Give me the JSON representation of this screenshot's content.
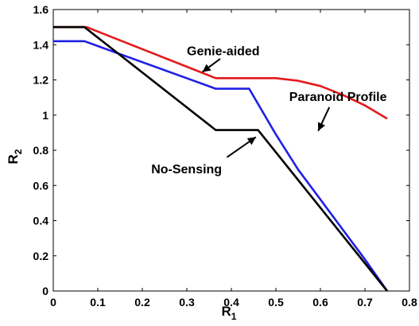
{
  "chart_data": {
    "type": "line",
    "xlabel": "R",
    "xlabel_sub": "1",
    "ylabel": "R",
    "ylabel_sub": "2",
    "xlim": [
      0,
      0.8
    ],
    "ylim": [
      0,
      1.6
    ],
    "xticks": [
      "0",
      "0.1",
      "0.2",
      "0.3",
      "0.4",
      "0.5",
      "0.6",
      "0.7",
      "0.8"
    ],
    "yticks": [
      "0",
      "0.2",
      "0.4",
      "0.6",
      "0.8",
      "1",
      "1.2",
      "1.4",
      "1.6"
    ],
    "grid": false,
    "series": [
      {
        "key": "genie",
        "color": "#e41a1c",
        "x": [
          0,
          0.075,
          0.365,
          0.5,
          0.55,
          0.6,
          0.65,
          0.7,
          0.75
        ],
        "y": [
          1.5,
          1.5,
          1.21,
          1.21,
          1.195,
          1.165,
          1.115,
          1.055,
          0.98
        ]
      },
      {
        "key": "paranoid",
        "color": "#1f1fe6",
        "x": [
          0,
          0.07,
          0.365,
          0.44,
          0.5,
          0.55,
          0.6,
          0.65,
          0.7,
          0.75
        ],
        "y": [
          1.42,
          1.42,
          1.15,
          1.15,
          0.89,
          0.69,
          0.52,
          0.35,
          0.18,
          0
        ]
      },
      {
        "key": "nosensing",
        "color": "#000000",
        "x": [
          0,
          0.07,
          0.365,
          0.46,
          0.75
        ],
        "y": [
          1.5,
          1.5,
          0.915,
          0.915,
          0
        ]
      }
    ],
    "annotations": [
      {
        "text": "Genie-aided",
        "tx": 0.3,
        "ty": 1.34,
        "ax": 0.375,
        "ay": 1.32,
        "hx": 0.335,
        "hy": 1.245
      },
      {
        "text": "Paranoid Profile",
        "tx": 0.53,
        "ty": 1.08,
        "ax": 0.62,
        "ay": 1.045,
        "hx": 0.595,
        "hy": 0.91
      },
      {
        "text": "No-Sensing",
        "tx": 0.22,
        "ty": 0.67,
        "ax": 0.39,
        "ay": 0.76,
        "hx": 0.455,
        "hy": 0.875
      }
    ]
  }
}
